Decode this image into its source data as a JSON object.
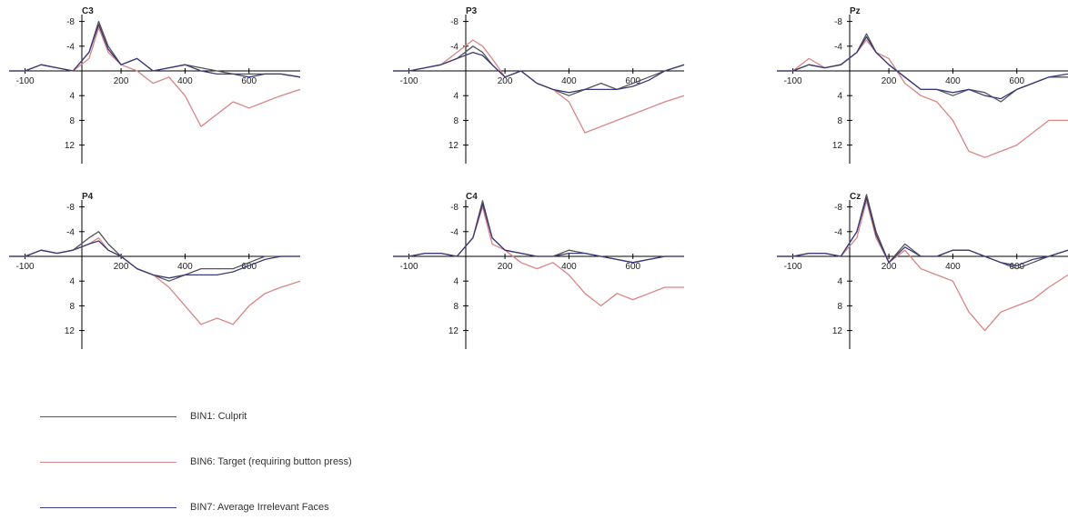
{
  "chart_data": {
    "type": "line",
    "y_inverted": true,
    "grid": false,
    "xlim": [
      -150,
      760
    ],
    "ylim": [
      -10,
      15
    ],
    "x_ticks": [
      -100,
      200,
      400,
      600
    ],
    "x_tick_labels": [
      "-100",
      "200",
      "400",
      "600"
    ],
    "y_ticks": [
      -8,
      -4,
      4,
      8,
      12
    ],
    "y_tick_labels": [
      "-8",
      "-4",
      "4",
      "8",
      "12"
    ],
    "series_styles": [
      {
        "name": "BIN1: Culprit",
        "color": "#555555"
      },
      {
        "name": "BIN6: Target (requiring button press)",
        "color": "#d98585"
      },
      {
        "name": "BIN7: Average Irrelevant Faces",
        "color": "#3a3a7a"
      }
    ],
    "x": [
      -150,
      -100,
      -50,
      0,
      50,
      100,
      130,
      160,
      200,
      250,
      300,
      350,
      400,
      450,
      500,
      550,
      600,
      650,
      700,
      760
    ],
    "panels": [
      {
        "title": "C3",
        "series": [
          {
            "name": "BIN1: Culprit",
            "values": [
              0,
              0,
              -1,
              -0.5,
              0,
              -3,
              -8,
              -4,
              -1,
              -2,
              0,
              -0.5,
              -1,
              -0.5,
              0,
              0.5,
              0.5,
              0.5,
              0.5,
              1
            ]
          },
          {
            "name": "BIN6: Target (requiring button press)",
            "values": [
              0,
              0,
              -1,
              -0.5,
              0,
              -2,
              -7,
              -3,
              -1,
              0,
              2,
              1,
              4,
              9,
              7,
              5,
              6,
              5,
              4,
              3
            ]
          },
          {
            "name": "BIN7: Average Irrelevant Faces",
            "values": [
              0,
              0,
              -1,
              -0.5,
              0,
              -3,
              -7.5,
              -3.5,
              -1,
              -2,
              0,
              -0.5,
              -1,
              0,
              0.5,
              0.5,
              1,
              0.5,
              0.5,
              1
            ]
          }
        ]
      },
      {
        "title": "P3",
        "series": [
          {
            "name": "BIN1: Culprit",
            "values": [
              0,
              0,
              -0.5,
              -1,
              -2,
              -4,
              -3,
              -1,
              1,
              0,
              2,
              3,
              4,
              3,
              2,
              3,
              2,
              1,
              0,
              -1
            ]
          },
          {
            "name": "BIN6: Target (requiring button press)",
            "values": [
              0,
              0,
              -0.5,
              -1,
              -3,
              -5,
              -4,
              -2,
              1,
              0,
              2,
              3,
              5,
              10,
              9,
              8,
              7,
              6,
              5,
              4
            ]
          },
          {
            "name": "BIN7: Average Irrelevant Faces",
            "values": [
              0,
              0,
              -0.5,
              -1,
              -2,
              -3,
              -2.5,
              -1,
              1,
              0,
              2,
              3,
              3.5,
              3,
              3,
              3,
              2.5,
              1.5,
              0,
              -1
            ]
          }
        ]
      },
      {
        "title": "Pz",
        "series": [
          {
            "name": "BIN1: Culprit",
            "values": [
              0,
              0,
              -1,
              -0.5,
              -1,
              -3,
              -6,
              -3,
              -1,
              1,
              3,
              3,
              4,
              3,
              3.5,
              5,
              3,
              2,
              1,
              1
            ]
          },
          {
            "name": "BIN6: Target (requiring button press)",
            "values": [
              0,
              0,
              -2,
              -0.5,
              -1,
              -3,
              -5,
              -3,
              -2,
              2,
              4,
              5,
              8,
              13,
              14,
              13,
              12,
              10,
              8,
              8
            ]
          },
          {
            "name": "BIN7: Average Irrelevant Faces",
            "values": [
              0,
              0,
              -1,
              -0.5,
              -1,
              -3,
              -5.5,
              -3,
              -1,
              1,
              3,
              3,
              3.5,
              3,
              4,
              4.5,
              3,
              2,
              1,
              0.5
            ]
          }
        ]
      },
      {
        "title": "P4",
        "series": [
          {
            "name": "BIN1: Culprit",
            "values": [
              0,
              0,
              -1,
              -0.5,
              -1,
              -3,
              -4,
              -2,
              0,
              2,
              3,
              4,
              3,
              2,
              2,
              2,
              1,
              0,
              0,
              0
            ]
          },
          {
            "name": "BIN6: Target (requiring button press)",
            "values": [
              0,
              0,
              -1,
              -0.5,
              -1,
              -2,
              -3,
              -1,
              0,
              2,
              3,
              5,
              8,
              11,
              10,
              11,
              8,
              6,
              5,
              4
            ]
          },
          {
            "name": "BIN7: Average Irrelevant Faces",
            "values": [
              0,
              0,
              -1,
              -0.5,
              -1,
              -2,
              -2.5,
              -1,
              0,
              2,
              3,
              3.5,
              3,
              3,
              3,
              2.5,
              1.5,
              0.5,
              0,
              0
            ]
          }
        ]
      },
      {
        "title": "C4",
        "series": [
          {
            "name": "BIN1: Culprit",
            "values": [
              0,
              0,
              -0.5,
              -0.5,
              0,
              -3,
              -9,
              -3,
              -1,
              -0.5,
              0,
              0,
              -1,
              -0.5,
              0,
              0.5,
              1,
              0.5,
              0,
              0
            ]
          },
          {
            "name": "BIN6: Target (requiring button press)",
            "values": [
              0,
              0,
              -0.5,
              -0.5,
              0,
              -3,
              -8,
              -2,
              -1,
              1,
              2,
              1,
              3,
              6,
              8,
              6,
              7,
              6,
              5,
              5
            ]
          },
          {
            "name": "BIN7: Average Irrelevant Faces",
            "values": [
              0,
              0,
              -0.5,
              -0.5,
              0,
              -3,
              -8.5,
              -3,
              -1,
              -0.5,
              0,
              0,
              -0.5,
              -0.5,
              0,
              0.5,
              1,
              0.5,
              0,
              0
            ]
          }
        ]
      },
      {
        "title": "Cz",
        "series": [
          {
            "name": "BIN1: Culprit",
            "values": [
              0,
              0,
              -0.5,
              -0.5,
              0,
              -4,
              -10,
              -4,
              1,
              -2,
              0,
              0,
              -1,
              -1,
              0,
              1,
              2,
              1,
              0,
              -1
            ]
          },
          {
            "name": "BIN6: Target (requiring button press)",
            "values": [
              0,
              0,
              -0.5,
              -0.5,
              0,
              -3,
              -9,
              -3,
              1,
              -1,
              2,
              3,
              4,
              9,
              12,
              9,
              8,
              7,
              5,
              3
            ]
          },
          {
            "name": "BIN7: Average Irrelevant Faces",
            "values": [
              0,
              0,
              -0.5,
              -0.5,
              0,
              -4,
              -9.5,
              -3.5,
              1,
              -1.5,
              0,
              0,
              -1,
              -1,
              0,
              1,
              1.5,
              0.5,
              0,
              -1
            ]
          }
        ]
      }
    ]
  },
  "legend": {
    "items": [
      {
        "label": "BIN1: Culprit",
        "color": "#555555"
      },
      {
        "label": "BIN6: Target (requiring button press)",
        "color": "#d98585"
      },
      {
        "label": "BIN7: Average Irrelevant Faces",
        "color": "#3a3a7a"
      }
    ]
  }
}
